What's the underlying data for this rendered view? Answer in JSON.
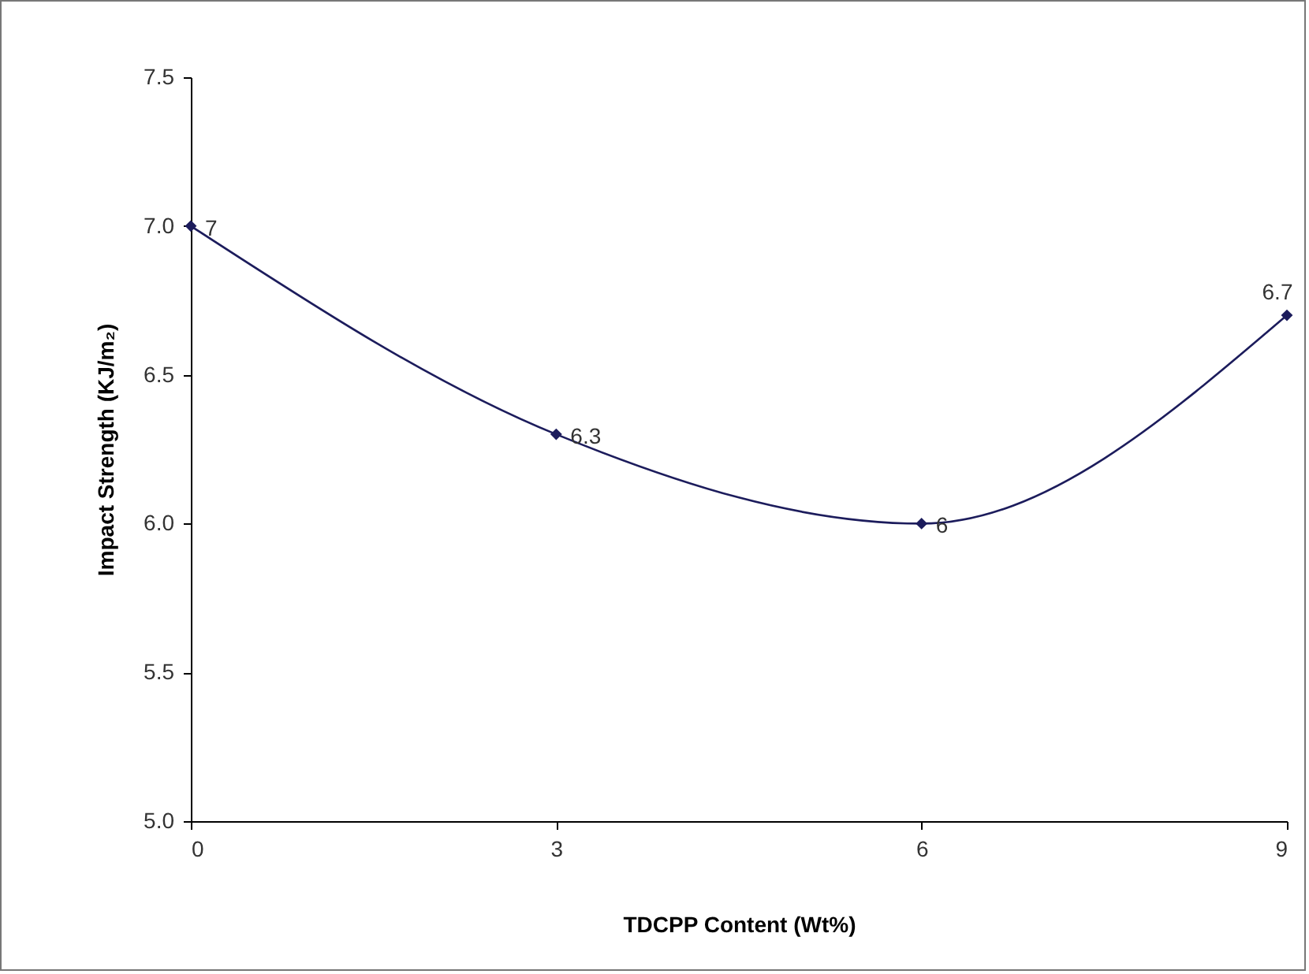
{
  "chart_data": {
    "type": "line",
    "xlabel": "TDCPP Content (Wt%)",
    "ylabel": "Impact Strength (KJ/m₂)",
    "x": [
      0,
      3,
      6,
      9
    ],
    "series": [
      {
        "color": "#1c1c5c",
        "values": [
          7,
          6.3,
          6,
          6.7
        ]
      }
    ],
    "xlim": [
      0,
      9
    ],
    "xticks": [
      0,
      3,
      6,
      9
    ],
    "ylim": [
      5,
      7.5
    ],
    "yticks": [
      {
        "value": 5,
        "label": "5.0"
      },
      {
        "value": 5.5,
        "label": "5.5"
      },
      {
        "value": 6,
        "label": "6.0"
      },
      {
        "value": 6.5,
        "label": "6.5"
      },
      {
        "value": 7,
        "label": "7.0"
      },
      {
        "value": 7.5,
        "label": "7.5"
      }
    ],
    "grid": false,
    "marker": "diamond",
    "line_style": "solid",
    "data_labels": true
  }
}
